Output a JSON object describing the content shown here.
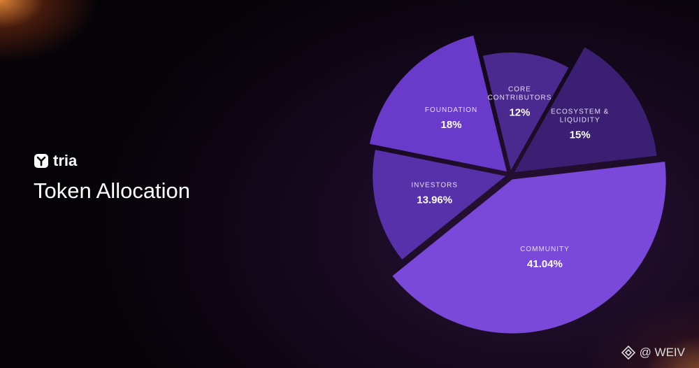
{
  "brand": "tria",
  "watermark": "@ WEIV",
  "chart_data": {
    "type": "pie",
    "title": "Token Allocation",
    "categories": [
      "COMMUNITY",
      "INVESTORS",
      "FOUNDATION",
      "CORE CONTRIBUTORS",
      "ECOSYSTEM & LIQUIDITY"
    ],
    "values": [
      41.04,
      13.96,
      18,
      12,
      15
    ],
    "value_labels": [
      "41.04%",
      "13.96%",
      "18%",
      "12%",
      "15%"
    ],
    "colors": [
      "#7a49d9",
      "#5631a9",
      "#6a3bca",
      "#4a2a8f",
      "#3a1f72"
    ]
  }
}
